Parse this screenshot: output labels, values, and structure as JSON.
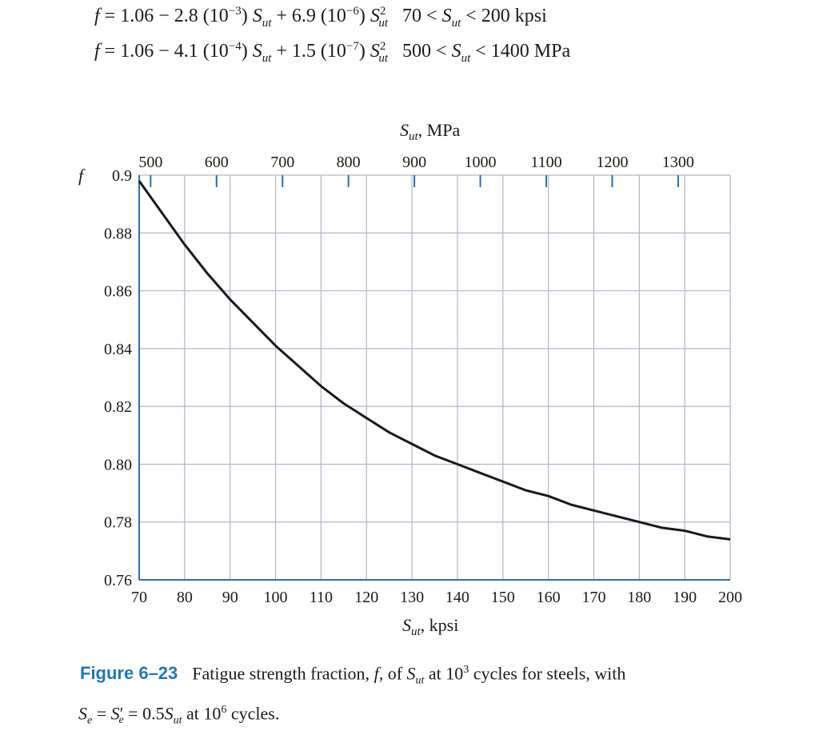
{
  "equations": {
    "kpsi": {
      "lhs": "f",
      "expr_part1": " = 1.06 − 2.8 (10",
      "exp1": "−3",
      "expr_part2": ") ",
      "var": "S",
      "sub": "ut",
      "expr_part3": " + 6.9 (10",
      "exp2": "−6",
      "expr_part4": ") ",
      "var2": "S",
      "sub2": "ut",
      "sup2": "2",
      "range_low": "70 < ",
      "range_var": "S",
      "range_sub": "ut",
      "range_high": " < 200 kpsi"
    },
    "mpa": {
      "lhs": "f",
      "expr_part1": " = 1.06 − 4.1 (10",
      "exp1": "−4",
      "expr_part2": ") ",
      "var": "S",
      "sub": "ut",
      "expr_part3": " + 1.5 (10",
      "exp2": "−7",
      "expr_part4": ") ",
      "var2": "S",
      "sub2": "ut",
      "sup2": "2",
      "range_low": "500 < ",
      "range_var": "S",
      "range_sub": "ut",
      "range_high": " < 1400 MPa"
    }
  },
  "chart_data": {
    "type": "line",
    "curve_color": "#1a1a1a",
    "grid_color": "#b0b6c8",
    "axis_color": "#2b6fad",
    "grid": true,
    "ylabel": "f",
    "xlabel_var": "S",
    "xlabel_sub": "ut",
    "xlabel_unit": ", kpsi",
    "x2label_var": "S",
    "x2label_sub": "ut",
    "x2label_unit": ", MPa",
    "xlim": [
      70,
      200
    ],
    "ylim": [
      0.76,
      0.9
    ],
    "x_ticks": [
      "70",
      "80",
      "90",
      "100",
      "110",
      "120",
      "130",
      "140",
      "150",
      "160",
      "170",
      "180",
      "190",
      "200"
    ],
    "y_ticks": [
      "0.76",
      "0.78",
      "0.80",
      "0.82",
      "0.84",
      "0.86",
      "0.88",
      "0.9"
    ],
    "x2_ticks": [
      "500",
      "600",
      "700",
      "800",
      "900",
      "1000",
      "1100",
      "1200",
      "1300"
    ],
    "series": [
      {
        "x": [
          70,
          75,
          80,
          85,
          90,
          95,
          100,
          105,
          110,
          115,
          120,
          125,
          130,
          135,
          140,
          145,
          150,
          155,
          160,
          165,
          170,
          175,
          180,
          185,
          190,
          195,
          200
        ],
        "y": [
          0.898,
          0.887,
          0.876,
          0.866,
          0.857,
          0.849,
          0.841,
          0.834,
          0.827,
          0.821,
          0.816,
          0.811,
          0.807,
          0.803,
          0.8,
          0.797,
          0.794,
          0.791,
          0.789,
          0.786,
          0.784,
          0.782,
          0.78,
          0.778,
          0.777,
          0.775,
          0.774
        ]
      }
    ]
  },
  "caption": {
    "figure_number": "Figure 6–23",
    "text_1": "Fatigue strength fraction, ",
    "f": "f",
    "text_2": ", of ",
    "s": "S",
    "s_sub": "ut",
    "text_3": " at 10",
    "cycles_exp1": "3",
    "text_4": " cycles for steels, with",
    "line2_se": "S",
    "line2_se_sub": "e",
    "line2_eq1": " = ",
    "line2_se2": "S",
    "line2_se2_prime": "′",
    "line2_se2_sub": "e",
    "line2_eq2": " = 0.5",
    "line2_sut": "S",
    "line2_sut_sub": "ut",
    "line2_text": " at 10",
    "cycles_exp2": "6",
    "line2_end": " cycles."
  }
}
